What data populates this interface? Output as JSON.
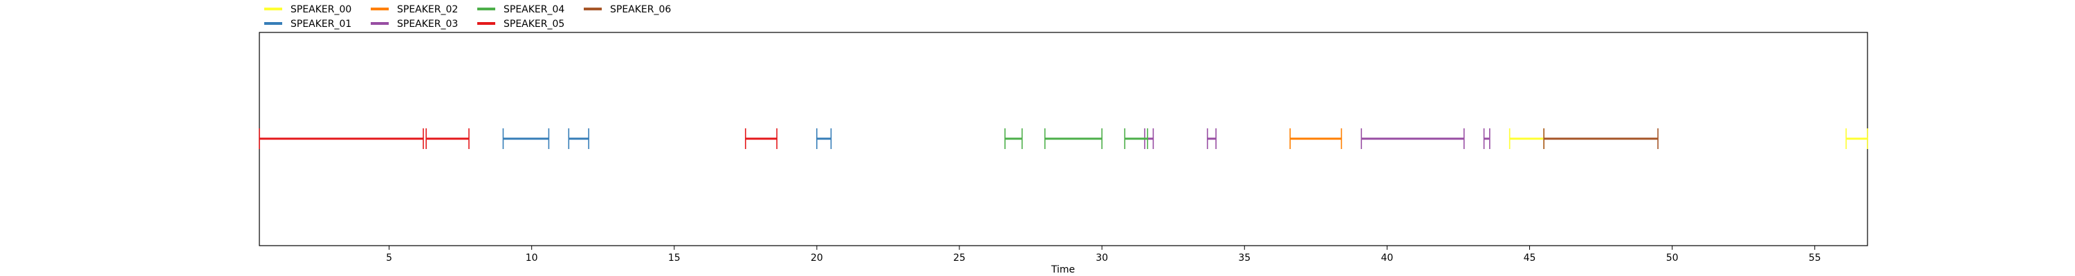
{
  "chart_data": {
    "type": "timeline",
    "xlabel": "Time",
    "xlim": [
      0.45,
      56.85
    ],
    "xticks": [
      5,
      10,
      15,
      20,
      25,
      30,
      35,
      40,
      45,
      50,
      55
    ],
    "grid": false,
    "legend_position": "top-left",
    "series": [
      {
        "name": "SPEAKER_00",
        "color": "#ffff33",
        "segments": [
          [
            44.3,
            45.5
          ],
          [
            56.1,
            56.85
          ]
        ]
      },
      {
        "name": "SPEAKER_01",
        "color": "#377eb8",
        "segments": [
          [
            9.0,
            10.6
          ],
          [
            11.3,
            12.0
          ],
          [
            20.0,
            20.5
          ]
        ]
      },
      {
        "name": "SPEAKER_02",
        "color": "#ff7f00",
        "segments": [
          [
            36.6,
            38.4
          ]
        ]
      },
      {
        "name": "SPEAKER_03",
        "color": "#984ea3",
        "segments": [
          [
            31.5,
            31.8
          ],
          [
            33.7,
            34.0
          ],
          [
            39.1,
            42.7
          ],
          [
            43.4,
            43.6
          ]
        ]
      },
      {
        "name": "SPEAKER_04",
        "color": "#4daf4a",
        "segments": [
          [
            26.6,
            27.2
          ],
          [
            28.0,
            30.0
          ],
          [
            30.8,
            31.6
          ]
        ]
      },
      {
        "name": "SPEAKER_05",
        "color": "#e41a1c",
        "segments": [
          [
            0.45,
            6.2
          ],
          [
            6.3,
            7.8
          ],
          [
            17.5,
            18.6
          ]
        ]
      },
      {
        "name": "SPEAKER_06",
        "color": "#a65628",
        "segments": [
          [
            45.5,
            49.5
          ]
        ]
      }
    ]
  }
}
